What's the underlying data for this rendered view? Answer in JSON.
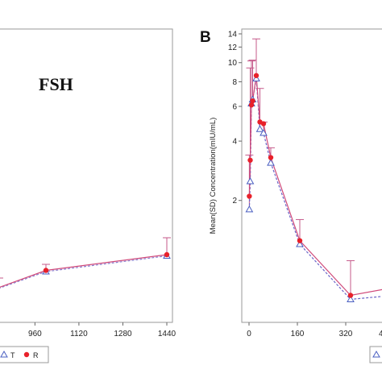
{
  "chart_data": [
    {
      "type": "line",
      "panel": "",
      "title": "FSH",
      "xlabel": "",
      "ylabel": "",
      "x_ticks": [
        960,
        1120,
        1280,
        1440
      ],
      "legend": [
        "T",
        "R"
      ],
      "series": [
        {
          "name": "T",
          "x": [
            1000,
            1440
          ],
          "y": [
            0.42,
            0.55
          ],
          "sd_upper": [
            0.48,
            0.7
          ]
        },
        {
          "name": "R",
          "x": [
            1000,
            1440
          ],
          "y": [
            0.43,
            0.56
          ],
          "sd_upper": [
            0.48,
            0.7
          ]
        }
      ],
      "colors": {
        "T": "#4a5fc1",
        "R": "#e8212a"
      }
    },
    {
      "type": "line",
      "panel": "B",
      "title": "",
      "xlabel": "",
      "ylabel": "Mean(SD) Concentration(mIU/mL)",
      "yscale": "log",
      "ylim": [
        0.5,
        14
      ],
      "y_ticks": [
        2,
        4,
        6,
        8,
        10,
        12,
        14
      ],
      "x_ticks": [
        0,
        160,
        320
      ],
      "legend_placement": "bottom",
      "series": [
        {
          "name": "T",
          "x": [
            1,
            4,
            8,
            12,
            24,
            36,
            48,
            72,
            168,
            336
          ],
          "y": [
            1.8,
            2.5,
            6.2,
            6.5,
            8.3,
            4.6,
            4.4,
            3.1,
            1.2,
            0.63
          ],
          "sd_upper": [
            3.4,
            9.4,
            10.2,
            10.3,
            13.2,
            7.4,
            5.0,
            3.7,
            1.6,
            0.99
          ]
        },
        {
          "name": "R",
          "x": [
            1,
            4,
            8,
            12,
            24,
            36,
            48,
            72,
            168,
            336
          ],
          "y": [
            2.1,
            3.2,
            6.1,
            6.4,
            8.6,
            5.0,
            4.9,
            3.3,
            1.25,
            0.66
          ],
          "sd_upper": [
            3.4,
            9.4,
            10.2,
            10.3,
            13.2,
            7.4,
            5.0,
            3.7,
            1.6,
            0.99
          ]
        }
      ],
      "colors": {
        "T": "#4a5fc1",
        "R": "#e8212a"
      }
    }
  ]
}
